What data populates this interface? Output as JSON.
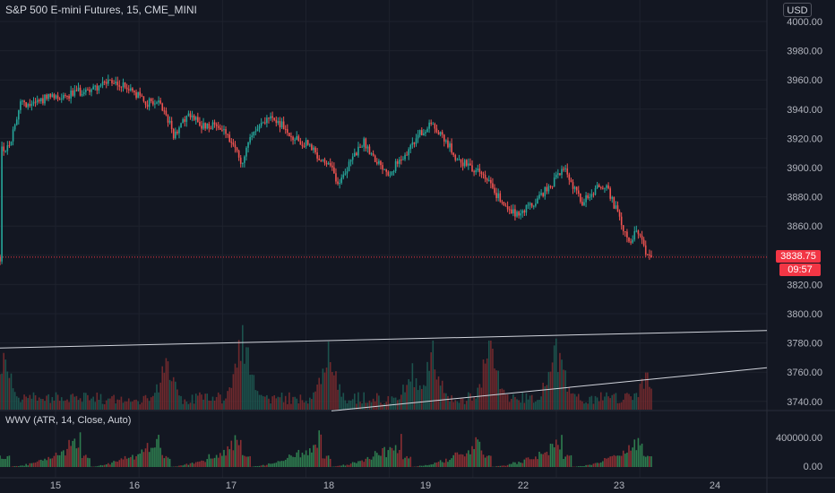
{
  "header": {
    "title": "S&P 500 E-mini Futures, 15, CME_MINI",
    "currency": "USD"
  },
  "last_price": {
    "value": "3838.75",
    "countdown": "09:57"
  },
  "indicator": {
    "title": "WWV (ATR, 14, Close, Auto)",
    "axis_ticks": [
      "400000.00",
      "0.00"
    ]
  },
  "colors": {
    "background": "#131722",
    "up": "#26a69a",
    "down": "#ef5350",
    "grid": "#1e222d",
    "axis_text": "#b2b5be",
    "price_line": "#f23645",
    "trendline": "#d1d4dc",
    "wwv_up": "#2e7d4f",
    "wwv_down": "#8b2f33"
  },
  "chart_data": {
    "type": "candlestick",
    "symbol": "S&P 500 E-mini Futures",
    "interval": "15",
    "exchange": "CME_MINI",
    "y_axis": {
      "ticks": [
        4000,
        3980,
        3960,
        3940,
        3920,
        3900,
        3880,
        3860,
        3840,
        3820,
        3800,
        3780,
        3760,
        3740
      ],
      "range": [
        3733,
        4010
      ]
    },
    "x_axis": {
      "ticks": [
        "15",
        "16",
        "17",
        "18",
        "19",
        "22",
        "23",
        "24"
      ]
    },
    "close_path_anchors": [
      [
        0,
        3918
      ],
      [
        0.35,
        3912
      ],
      [
        0.9,
        3920
      ],
      [
        1.5,
        3942
      ],
      [
        2.5,
        3945
      ],
      [
        4,
        3948
      ],
      [
        5.5,
        3950
      ],
      [
        7,
        3953
      ],
      [
        8.8,
        3958
      ],
      [
        10,
        3956
      ],
      [
        11.3,
        3949
      ],
      [
        12,
        3944
      ],
      [
        12.8,
        3945
      ],
      [
        13.6,
        3935
      ],
      [
        14.2,
        3922
      ],
      [
        14.7,
        3930
      ],
      [
        15.4,
        3935
      ],
      [
        16.5,
        3929
      ],
      [
        18.3,
        3927
      ],
      [
        19.2,
        3912
      ],
      [
        19.8,
        3903
      ],
      [
        20.3,
        3920
      ],
      [
        21.3,
        3928
      ],
      [
        22.3,
        3936
      ],
      [
        23.1,
        3928
      ],
      [
        24.0,
        3921
      ],
      [
        25.3,
        3915
      ],
      [
        26.2,
        3906
      ],
      [
        27.2,
        3898
      ],
      [
        27.6,
        3888
      ],
      [
        28.5,
        3902
      ],
      [
        29.7,
        3918
      ],
      [
        30.8,
        3905
      ],
      [
        31.8,
        3897
      ],
      [
        32.9,
        3906
      ],
      [
        34.1,
        3921
      ],
      [
        35.2,
        3929
      ],
      [
        36.3,
        3920
      ],
      [
        37.5,
        3905
      ],
      [
        38.5,
        3900
      ],
      [
        39.8,
        3893
      ],
      [
        40.6,
        3882
      ],
      [
        41.3,
        3875
      ],
      [
        42.3,
        3868
      ],
      [
        43.2,
        3873
      ],
      [
        44.2,
        3880
      ],
      [
        45.2,
        3890
      ],
      [
        46.2,
        3899
      ],
      [
        47.0,
        3885
      ],
      [
        47.6,
        3876
      ],
      [
        48.4,
        3882
      ],
      [
        49.2,
        3888
      ],
      [
        49.8,
        3884
      ],
      [
        50.7,
        3865
      ],
      [
        51.4,
        3848
      ],
      [
        52.1,
        3858
      ],
      [
        52.7,
        3845
      ],
      [
        53.3,
        3838.75
      ]
    ],
    "candle_count": 350,
    "volume": {
      "spikes": [
        [
          0.28,
          0.55
        ],
        [
          13.62,
          0.5
        ],
        [
          19.87,
          0.82
        ],
        [
          26.85,
          0.66
        ],
        [
          33.7,
          0.45
        ],
        [
          35.4,
          0.65
        ],
        [
          40.1,
          0.67
        ],
        [
          45.5,
          0.69
        ],
        [
          52.91,
          0.36
        ]
      ],
      "ascending_trend": [
        [
          0.0,
          0.3
        ],
        [
          1.0,
          0.44
        ]
      ]
    },
    "wwv": {
      "up_blocks": [
        [
          0.0,
          0.04,
          5
        ],
        [
          0.32,
          0.45,
          30
        ],
        [
          0.57,
          0.64,
          20
        ],
        [
          0.75,
          0.82,
          30
        ]
      ],
      "down_blocks": [
        [
          0.2,
          0.24,
          20
        ],
        [
          0.46,
          0.5,
          40
        ],
        [
          0.85,
          0.88,
          35
        ]
      ]
    }
  }
}
